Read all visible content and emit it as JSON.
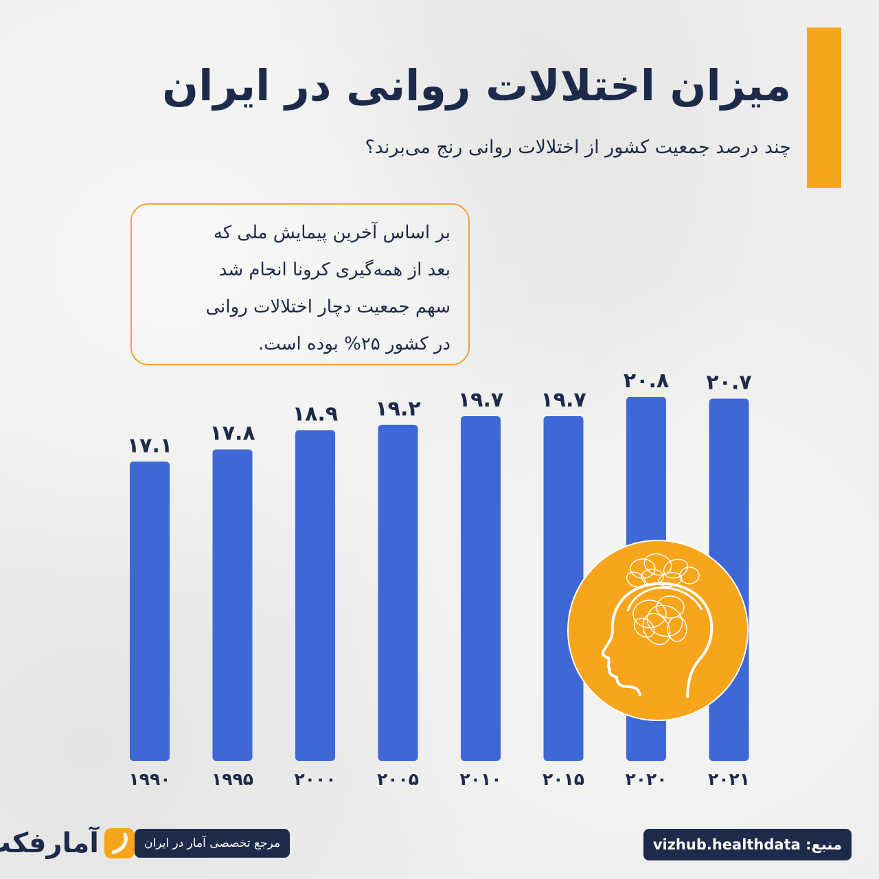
{
  "header": {
    "title": "میزان اختلالات روانی در ایران",
    "subtitle": "چند درصد جمعیت کشور از اختلالات روانی رنج می‌برند؟"
  },
  "note": {
    "lines": [
      "بر اساس آخرین پیمایش ملی که",
      "بعد از همه‌گیری کرونا انجام شد",
      "سهم جمعیت دچار اختلالات روانی",
      "در کشور  ۲۵% بوده است."
    ]
  },
  "chart_data": {
    "type": "bar",
    "categories": [
      "1990",
      "1995",
      "2000",
      "2005",
      "2010",
      "2015",
      "2020",
      "2021"
    ],
    "category_labels": [
      "۱۹۹۰",
      "۱۹۹۵",
      "۲۰۰۰",
      "۲۰۰۵",
      "۲۰۱۰",
      "۲۰۱۵",
      "۲۰۲۰",
      "۲۰۲۱"
    ],
    "values": [
      17.1,
      17.8,
      18.9,
      19.2,
      19.7,
      19.7,
      20.8,
      20.7
    ],
    "value_labels": [
      "۱۷.۱",
      "۱۷.۸",
      "۱۸.۹",
      "۱۹.۲",
      "۱۹.۷",
      "۱۹.۷",
      "۲۰.۸",
      "۲۰.۷"
    ],
    "title": "میزان اختلالات روانی در ایران",
    "xlabel": "",
    "ylabel": "",
    "ylim": [
      0,
      21
    ],
    "grid": false,
    "bar_color": "#3e68d6"
  },
  "footer": {
    "brand_logo_text": "آمارفکت",
    "brand_tagline": "مرجع تخصصی آمار در ایران",
    "source": "منبع: vizhub.healthdata"
  },
  "colors": {
    "accent": "#f7a51b",
    "text": "#1d2a4a",
    "bar": "#3e68d6",
    "background": "#eeeeec"
  },
  "icons": [
    "brain-head-icon",
    "logo-mark-icon"
  ]
}
